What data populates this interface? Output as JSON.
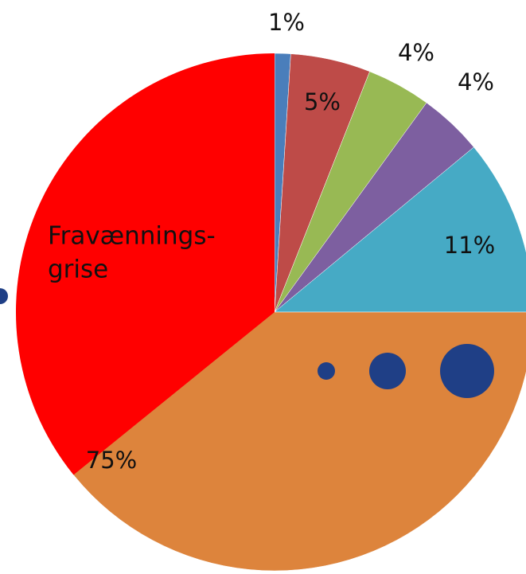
{
  "chart_data": {
    "type": "pie",
    "values": [
      1,
      5,
      4,
      4,
      11,
      75
    ],
    "value_labels": [
      "1%",
      "5%",
      "4%",
      "4%",
      "11%",
      "75%"
    ],
    "colors": [
      "#4a7ebb",
      "#be4b48",
      "#98b954",
      "#7d5fa0",
      "#46aac5",
      "#dd843c"
    ],
    "annotation": [
      "Fravænnings-",
      "grise"
    ]
  }
}
